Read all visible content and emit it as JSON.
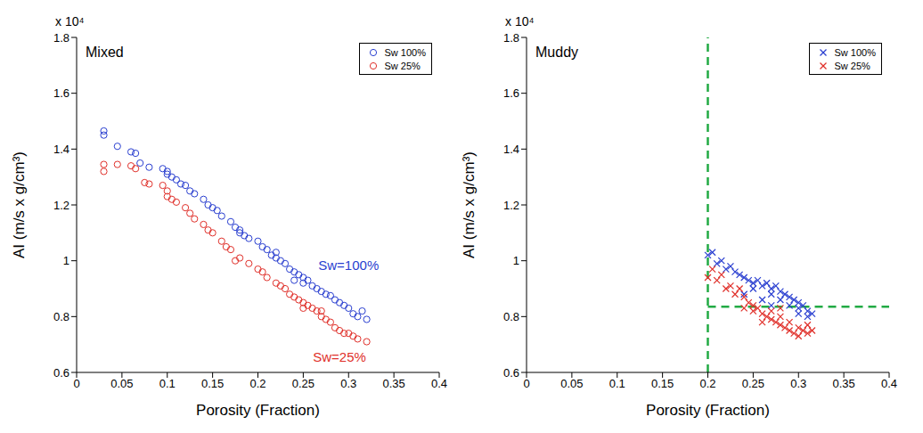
{
  "chart_data": [
    {
      "type": "scatter",
      "title": "Mixed",
      "x_label": "Porosity (Fraction)",
      "y_label": "AI (m/s x g/cm³)",
      "y_scale_label": "x 10⁴",
      "xlim": [
        0,
        0.4
      ],
      "xticks": [
        0,
        0.05,
        0.1,
        0.15,
        0.2,
        0.25,
        0.3,
        0.35,
        0.4
      ],
      "ylim": [
        0.6,
        1.8
      ],
      "yticks": [
        0.6,
        0.8,
        1,
        1.2,
        1.4,
        1.6,
        1.8
      ],
      "grid": false,
      "legend": "upper right",
      "annotations": [
        {
          "text": "Sw=100%",
          "x": 0.3,
          "y": 0.985,
          "color": "#2a3fd0"
        },
        {
          "text": "Sw=25%",
          "x": 0.29,
          "y": 0.655,
          "color": "#e0302a"
        }
      ],
      "reference_lines": [],
      "series": [
        {
          "name": "Sw 100%",
          "color": "#2a3fd0",
          "marker": "circle",
          "x": [
            0.03,
            0.03,
            0.045,
            0.06,
            0.065,
            0.07,
            0.08,
            0.095,
            0.1,
            0.1,
            0.105,
            0.11,
            0.115,
            0.12,
            0.125,
            0.13,
            0.14,
            0.145,
            0.15,
            0.155,
            0.16,
            0.17,
            0.175,
            0.18,
            0.185,
            0.19,
            0.2,
            0.205,
            0.21,
            0.215,
            0.22,
            0.225,
            0.23,
            0.235,
            0.24,
            0.245,
            0.25,
            0.25,
            0.255,
            0.26,
            0.265,
            0.27,
            0.275,
            0.28,
            0.285,
            0.29,
            0.295,
            0.3,
            0.305,
            0.31,
            0.32,
            0.315,
            0.24,
            0.22,
            0.18
          ],
          "values": [
            1.465,
            1.45,
            1.41,
            1.39,
            1.385,
            1.35,
            1.335,
            1.33,
            1.31,
            1.32,
            1.3,
            1.29,
            1.275,
            1.27,
            1.25,
            1.24,
            1.22,
            1.2,
            1.19,
            1.18,
            1.16,
            1.14,
            1.12,
            1.1,
            1.09,
            1.08,
            1.07,
            1.05,
            1.04,
            1.02,
            1.01,
            1.0,
            0.99,
            0.97,
            0.96,
            0.95,
            0.94,
            0.92,
            0.93,
            0.91,
            0.9,
            0.89,
            0.88,
            0.875,
            0.86,
            0.85,
            0.84,
            0.83,
            0.81,
            0.8,
            0.79,
            0.82,
            0.93,
            1.03,
            1.11
          ]
        },
        {
          "name": "Sw 25%",
          "color": "#e0302a",
          "marker": "circle",
          "x": [
            0.03,
            0.03,
            0.045,
            0.06,
            0.065,
            0.075,
            0.08,
            0.095,
            0.1,
            0.1,
            0.105,
            0.11,
            0.12,
            0.125,
            0.13,
            0.14,
            0.145,
            0.15,
            0.16,
            0.165,
            0.17,
            0.175,
            0.18,
            0.19,
            0.2,
            0.205,
            0.21,
            0.22,
            0.225,
            0.23,
            0.235,
            0.24,
            0.245,
            0.25,
            0.255,
            0.26,
            0.265,
            0.27,
            0.275,
            0.28,
            0.285,
            0.29,
            0.295,
            0.3,
            0.305,
            0.31,
            0.32,
            0.25,
            0.27
          ],
          "values": [
            1.345,
            1.32,
            1.345,
            1.34,
            1.33,
            1.28,
            1.275,
            1.27,
            1.25,
            1.23,
            1.22,
            1.21,
            1.19,
            1.17,
            1.15,
            1.13,
            1.11,
            1.1,
            1.07,
            1.05,
            1.04,
            1.0,
            1.01,
            0.99,
            0.97,
            0.96,
            0.94,
            0.92,
            0.91,
            0.9,
            0.88,
            0.87,
            0.86,
            0.85,
            0.84,
            0.83,
            0.82,
            0.8,
            0.79,
            0.78,
            0.76,
            0.75,
            0.74,
            0.74,
            0.73,
            0.72,
            0.71,
            0.83,
            0.82
          ]
        }
      ]
    },
    {
      "type": "scatter",
      "title": "Muddy",
      "x_label": "Porosity (Fraction)",
      "y_label": "AI (m/s x g/cm³)",
      "y_scale_label": "x 10⁴",
      "xlim": [
        0,
        0.4
      ],
      "xticks": [
        0,
        0.05,
        0.1,
        0.15,
        0.2,
        0.25,
        0.3,
        0.35,
        0.4
      ],
      "ylim": [
        0.6,
        1.8
      ],
      "yticks": [
        0.6,
        0.8,
        1,
        1.2,
        1.4,
        1.6,
        1.8
      ],
      "grid": false,
      "legend": "upper right",
      "annotations": [],
      "reference_lines": [
        {
          "axis": "x",
          "value": 0.2,
          "color": "#22aa44",
          "line_style": "dashed"
        },
        {
          "axis": "y",
          "value": 0.835,
          "color": "#22aa44",
          "line_style": "dashed"
        }
      ],
      "series": [
        {
          "name": "Sw 100%",
          "color": "#2a3fd0",
          "marker": "x",
          "x": [
            0.2,
            0.205,
            0.21,
            0.215,
            0.22,
            0.225,
            0.23,
            0.235,
            0.24,
            0.245,
            0.25,
            0.25,
            0.255,
            0.26,
            0.265,
            0.27,
            0.27,
            0.275,
            0.28,
            0.28,
            0.285,
            0.29,
            0.29,
            0.295,
            0.3,
            0.3,
            0.305,
            0.31,
            0.31,
            0.315,
            0.26,
            0.27,
            0.24,
            0.3
          ],
          "values": [
            1.02,
            1.03,
            0.99,
            1.0,
            0.97,
            0.98,
            0.96,
            0.95,
            0.94,
            0.93,
            0.92,
            0.9,
            0.93,
            0.91,
            0.92,
            0.9,
            0.88,
            0.91,
            0.89,
            0.86,
            0.88,
            0.87,
            0.84,
            0.86,
            0.85,
            0.83,
            0.84,
            0.82,
            0.8,
            0.81,
            0.86,
            0.84,
            0.88,
            0.81
          ]
        },
        {
          "name": "Sw 25%",
          "color": "#e0302a",
          "marker": "x",
          "x": [
            0.2,
            0.205,
            0.21,
            0.215,
            0.22,
            0.225,
            0.23,
            0.235,
            0.24,
            0.245,
            0.25,
            0.25,
            0.255,
            0.26,
            0.265,
            0.27,
            0.27,
            0.275,
            0.28,
            0.28,
            0.285,
            0.29,
            0.29,
            0.295,
            0.3,
            0.3,
            0.305,
            0.31,
            0.31,
            0.315,
            0.26,
            0.28,
            0.24
          ],
          "values": [
            0.94,
            0.97,
            0.93,
            0.95,
            0.9,
            0.91,
            0.88,
            0.9,
            0.87,
            0.85,
            0.84,
            0.82,
            0.83,
            0.81,
            0.8,
            0.79,
            0.82,
            0.78,
            0.77,
            0.8,
            0.76,
            0.75,
            0.78,
            0.74,
            0.76,
            0.73,
            0.75,
            0.74,
            0.77,
            0.75,
            0.78,
            0.83,
            0.83
          ]
        }
      ]
    }
  ]
}
